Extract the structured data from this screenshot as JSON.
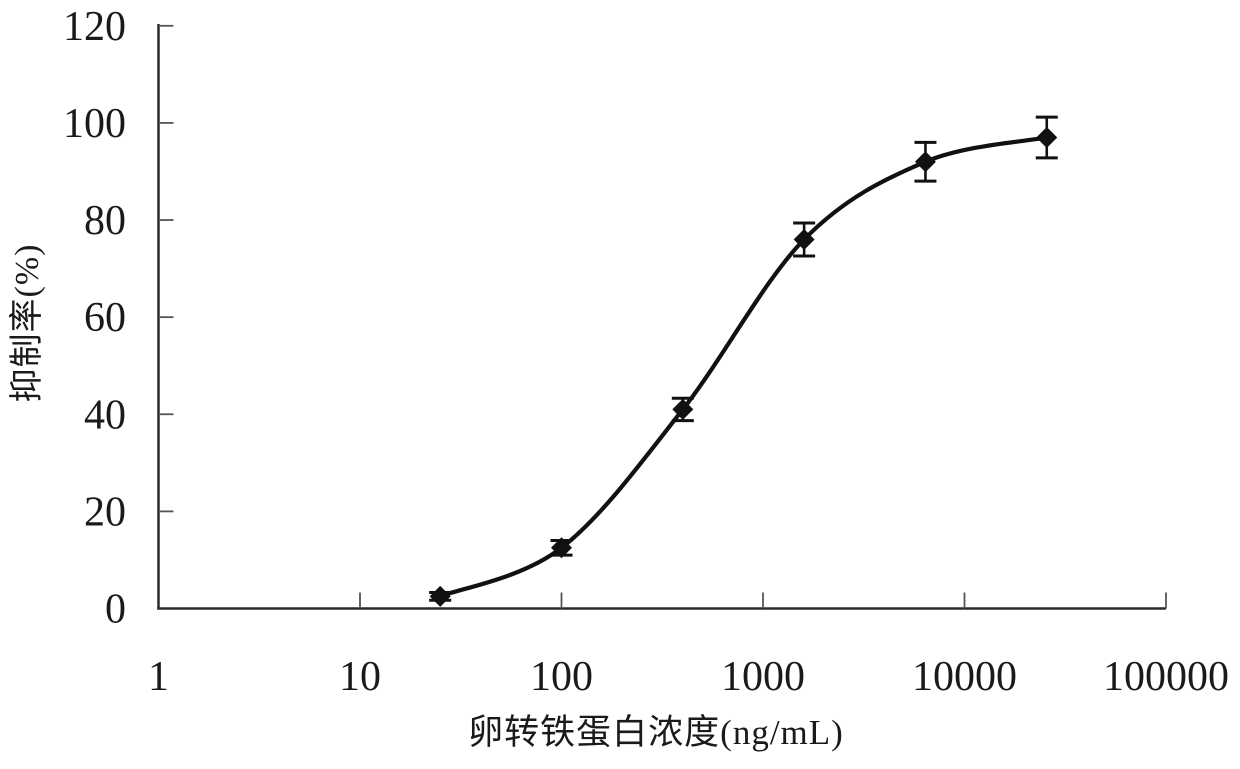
{
  "chart_data": {
    "type": "line",
    "title": "",
    "xlabel": "卵转铁蛋白浓度(ng/mL)",
    "ylabel": "抑制率(%)",
    "x_scale": "log10",
    "xlim": [
      1,
      100000
    ],
    "ylim": [
      0,
      120
    ],
    "x_ticks": [
      1,
      10,
      100,
      1000,
      10000,
      100000
    ],
    "y_ticks": [
      0,
      20,
      40,
      60,
      80,
      100,
      120
    ],
    "grid": false,
    "legend": "none",
    "marker": "filled-diamond",
    "line_color": "#111111",
    "axis_color": "#2a2a2a",
    "tick_color": "#555555",
    "series": [
      {
        "name": "inhibition-rate",
        "x": [
          25,
          100,
          400,
          1600,
          6400,
          25600
        ],
        "y": [
          2.5,
          12.5,
          41,
          76,
          92,
          97
        ],
        "y_err": [
          0.8,
          1.5,
          2.3,
          3.4,
          4.0,
          4.2
        ]
      }
    ]
  }
}
